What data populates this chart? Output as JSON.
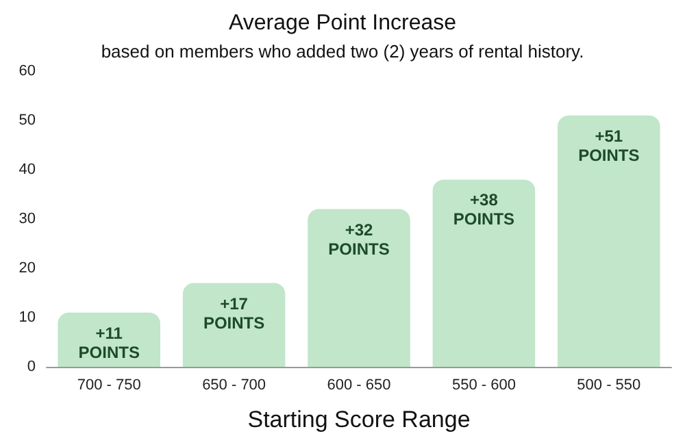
{
  "chart_data": {
    "type": "bar",
    "title": "Average Point Increase",
    "subtitle": "based on members who added two (2) years of rental history.",
    "xlabel": "Starting Score Range",
    "categories": [
      "700 - 750",
      "650 - 700",
      "600 - 650",
      "550 - 600",
      "500 - 550"
    ],
    "values": [
      11,
      17,
      32,
      38,
      51
    ],
    "color": "#c1e6c9",
    "value_labels": [
      "+11\nPOINTS",
      "+17\nPOINTS",
      "+32\nPOINTS",
      "+38\nPOINTS",
      "+51\nPOINTS"
    ],
    "ylim": [
      0,
      60
    ],
    "yticks": [
      0,
      10,
      20,
      30,
      40,
      50,
      60
    ],
    "grid": false
  }
}
